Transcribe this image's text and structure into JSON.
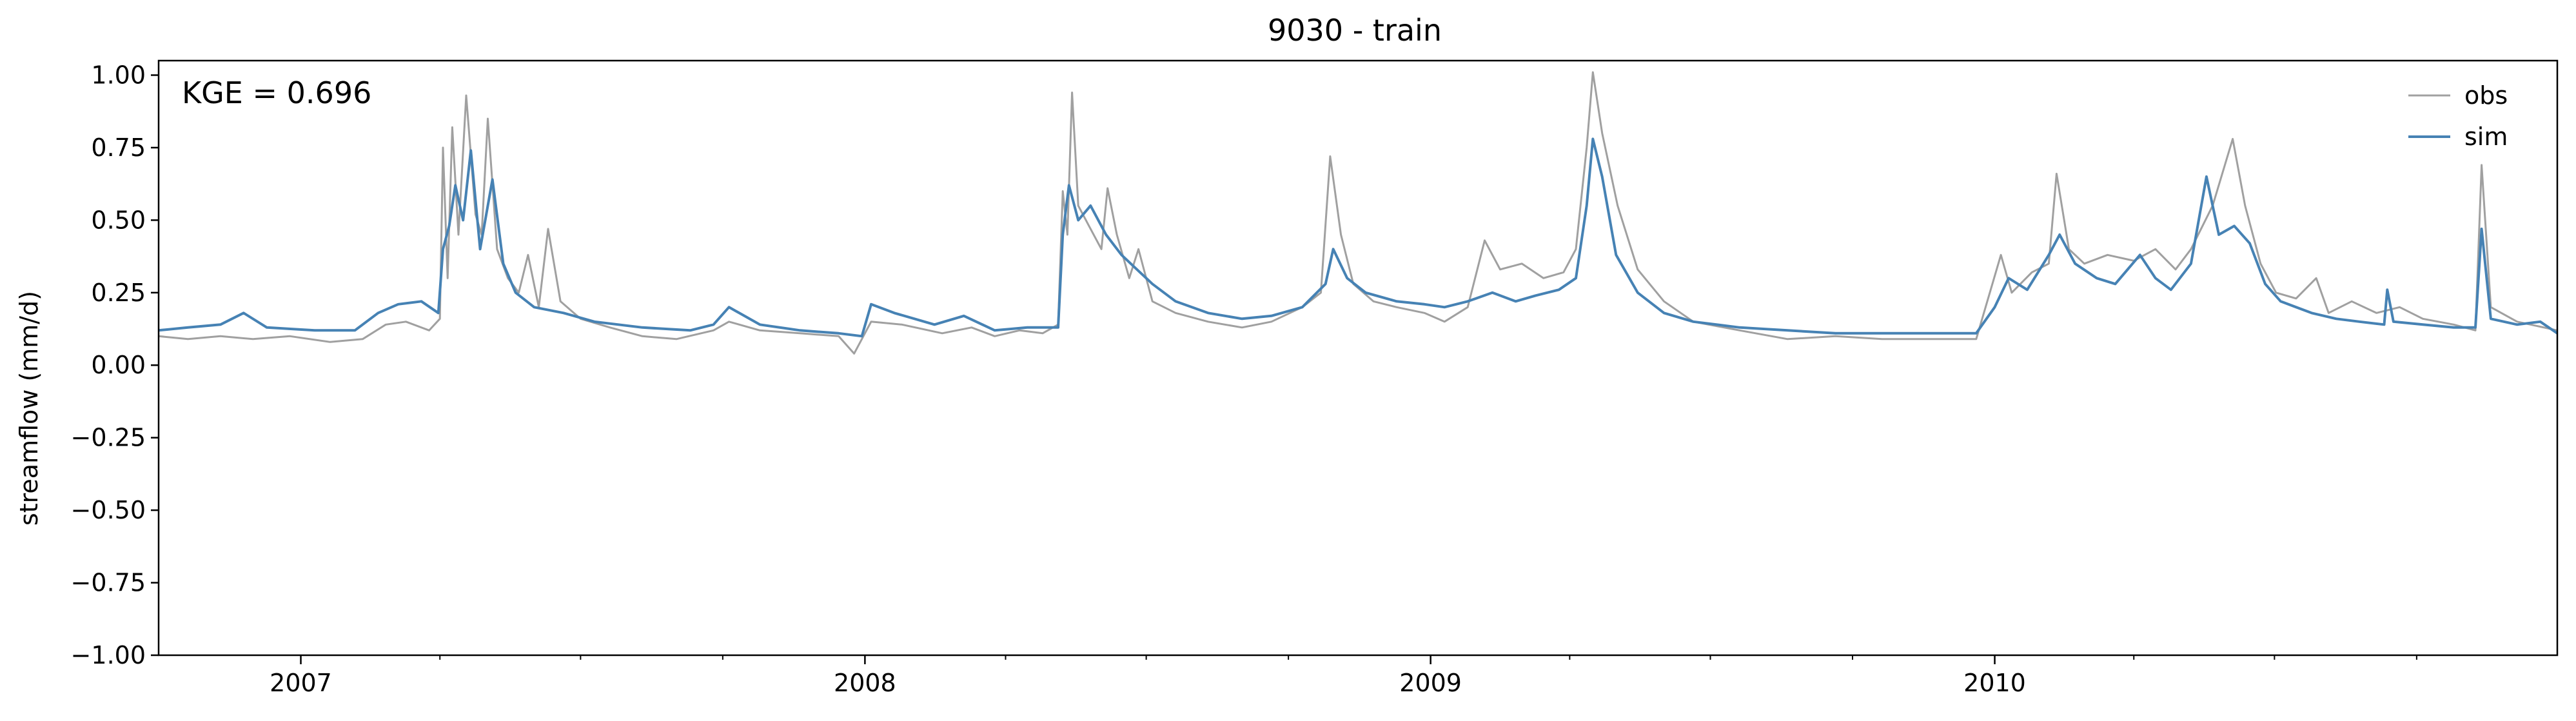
{
  "chart_data": {
    "type": "line",
    "title": "9030 - train",
    "xlabel": "",
    "ylabel": "streamflow (mm/d)",
    "annotation": "KGE = 0.696",
    "xlim": [
      "2006-10-01",
      "2010-12-31"
    ],
    "ylim": [
      -1.0,
      1.05
    ],
    "yticks": [
      1.0,
      0.75,
      0.5,
      0.25,
      0.0,
      -0.25,
      -0.5,
      -0.75,
      -1.0
    ],
    "ytick_labels": [
      "1.00",
      "0.75",
      "0.50",
      "0.25",
      "0.00",
      "−0.25",
      "−0.50",
      "−0.75",
      "−1.00"
    ],
    "xticks": [
      "2007-01-01",
      "2008-01-01",
      "2009-01-01",
      "2010-01-01"
    ],
    "xtick_labels": [
      "2007",
      "2008",
      "2009",
      "2010"
    ],
    "grid": false,
    "legend": "top-right",
    "series": [
      {
        "name": "obs",
        "color": "#a0a0a0",
        "points": [
          [
            "2006-10-01",
            0.1
          ],
          [
            "2006-10-20",
            0.09
          ],
          [
            "2006-11-10",
            0.1
          ],
          [
            "2006-12-01",
            0.09
          ],
          [
            "2006-12-25",
            0.1
          ],
          [
            "2007-01-20",
            0.08
          ],
          [
            "2007-02-10",
            0.09
          ],
          [
            "2007-02-25",
            0.14
          ],
          [
            "2007-03-10",
            0.15
          ],
          [
            "2007-03-25",
            0.12
          ],
          [
            "2007-04-01",
            0.16
          ],
          [
            "2007-04-03",
            0.75
          ],
          [
            "2007-04-06",
            0.3
          ],
          [
            "2007-04-09",
            0.82
          ],
          [
            "2007-04-13",
            0.45
          ],
          [
            "2007-04-18",
            0.93
          ],
          [
            "2007-04-24",
            0.52
          ],
          [
            "2007-04-28",
            0.45
          ],
          [
            "2007-05-02",
            0.85
          ],
          [
            "2007-05-08",
            0.4
          ],
          [
            "2007-05-15",
            0.3
          ],
          [
            "2007-05-22",
            0.25
          ],
          [
            "2007-05-28",
            0.38
          ],
          [
            "2007-06-04",
            0.2
          ],
          [
            "2007-06-10",
            0.47
          ],
          [
            "2007-06-18",
            0.22
          ],
          [
            "2007-07-01",
            0.16
          ],
          [
            "2007-07-20",
            0.13
          ],
          [
            "2007-08-10",
            0.1
          ],
          [
            "2007-09-01",
            0.09
          ],
          [
            "2007-09-25",
            0.12
          ],
          [
            "2007-10-05",
            0.15
          ],
          [
            "2007-10-25",
            0.12
          ],
          [
            "2007-11-20",
            0.11
          ],
          [
            "2007-12-15",
            0.1
          ],
          [
            "2007-12-25",
            0.04
          ],
          [
            "2008-01-05",
            0.15
          ],
          [
            "2008-01-25",
            0.14
          ],
          [
            "2008-02-20",
            0.11
          ],
          [
            "2008-03-10",
            0.13
          ],
          [
            "2008-03-25",
            0.1
          ],
          [
            "2008-04-10",
            0.12
          ],
          [
            "2008-04-25",
            0.11
          ],
          [
            "2008-05-05",
            0.14
          ],
          [
            "2008-05-08",
            0.6
          ],
          [
            "2008-05-11",
            0.45
          ],
          [
            "2008-05-14",
            0.94
          ],
          [
            "2008-05-18",
            0.55
          ],
          [
            "2008-05-25",
            0.48
          ],
          [
            "2008-06-02",
            0.4
          ],
          [
            "2008-06-06",
            0.61
          ],
          [
            "2008-06-12",
            0.45
          ],
          [
            "2008-06-20",
            0.3
          ],
          [
            "2008-06-26",
            0.4
          ],
          [
            "2008-07-05",
            0.22
          ],
          [
            "2008-07-20",
            0.18
          ],
          [
            "2008-08-10",
            0.15
          ],
          [
            "2008-09-01",
            0.13
          ],
          [
            "2008-09-20",
            0.15
          ],
          [
            "2008-10-10",
            0.2
          ],
          [
            "2008-10-22",
            0.25
          ],
          [
            "2008-10-28",
            0.72
          ],
          [
            "2008-11-04",
            0.45
          ],
          [
            "2008-11-12",
            0.28
          ],
          [
            "2008-11-25",
            0.22
          ],
          [
            "2008-12-10",
            0.2
          ],
          [
            "2008-12-28",
            0.18
          ],
          [
            "2009-01-10",
            0.15
          ],
          [
            "2009-01-25",
            0.2
          ],
          [
            "2009-02-05",
            0.43
          ],
          [
            "2009-02-15",
            0.33
          ],
          [
            "2009-03-01",
            0.35
          ],
          [
            "2009-03-15",
            0.3
          ],
          [
            "2009-03-28",
            0.32
          ],
          [
            "2009-04-05",
            0.4
          ],
          [
            "2009-04-12",
            0.75
          ],
          [
            "2009-04-16",
            1.01
          ],
          [
            "2009-04-22",
            0.8
          ],
          [
            "2009-05-02",
            0.55
          ],
          [
            "2009-05-15",
            0.33
          ],
          [
            "2009-06-01",
            0.22
          ],
          [
            "2009-06-20",
            0.15
          ],
          [
            "2009-07-20",
            0.12
          ],
          [
            "2009-08-20",
            0.09
          ],
          [
            "2009-09-20",
            0.1
          ],
          [
            "2009-10-20",
            0.09
          ],
          [
            "2009-11-20",
            0.09
          ],
          [
            "2009-12-20",
            0.09
          ],
          [
            "2010-01-05",
            0.38
          ],
          [
            "2010-01-12",
            0.25
          ],
          [
            "2010-01-25",
            0.32
          ],
          [
            "2010-02-05",
            0.35
          ],
          [
            "2010-02-10",
            0.66
          ],
          [
            "2010-02-18",
            0.4
          ],
          [
            "2010-02-28",
            0.35
          ],
          [
            "2010-03-15",
            0.38
          ],
          [
            "2010-04-01",
            0.36
          ],
          [
            "2010-04-15",
            0.4
          ],
          [
            "2010-04-28",
            0.33
          ],
          [
            "2010-05-08",
            0.4
          ],
          [
            "2010-05-22",
            0.55
          ],
          [
            "2010-06-04",
            0.78
          ],
          [
            "2010-06-12",
            0.55
          ],
          [
            "2010-06-22",
            0.35
          ],
          [
            "2010-07-02",
            0.25
          ],
          [
            "2010-07-15",
            0.23
          ],
          [
            "2010-07-28",
            0.3
          ],
          [
            "2010-08-05",
            0.18
          ],
          [
            "2010-08-20",
            0.22
          ],
          [
            "2010-09-05",
            0.18
          ],
          [
            "2010-09-20",
            0.2
          ],
          [
            "2010-10-05",
            0.16
          ],
          [
            "2010-10-25",
            0.14
          ],
          [
            "2010-11-08",
            0.12
          ],
          [
            "2010-11-12",
            0.69
          ],
          [
            "2010-11-18",
            0.2
          ],
          [
            "2010-12-05",
            0.15
          ],
          [
            "2010-12-31",
            0.12
          ]
        ]
      },
      {
        "name": "sim",
        "color": "#4682b4",
        "points": [
          [
            "2006-10-01",
            0.12
          ],
          [
            "2006-10-20",
            0.13
          ],
          [
            "2006-11-10",
            0.14
          ],
          [
            "2006-11-25",
            0.18
          ],
          [
            "2006-12-10",
            0.13
          ],
          [
            "2007-01-10",
            0.12
          ],
          [
            "2007-02-05",
            0.12
          ],
          [
            "2007-02-20",
            0.18
          ],
          [
            "2007-03-05",
            0.21
          ],
          [
            "2007-03-20",
            0.22
          ],
          [
            "2007-03-31",
            0.18
          ],
          [
            "2007-04-03",
            0.4
          ],
          [
            "2007-04-07",
            0.48
          ],
          [
            "2007-04-11",
            0.62
          ],
          [
            "2007-04-16",
            0.5
          ],
          [
            "2007-04-21",
            0.74
          ],
          [
            "2007-04-27",
            0.4
          ],
          [
            "2007-05-05",
            0.64
          ],
          [
            "2007-05-12",
            0.35
          ],
          [
            "2007-05-20",
            0.25
          ],
          [
            "2007-06-01",
            0.2
          ],
          [
            "2007-06-20",
            0.18
          ],
          [
            "2007-07-10",
            0.15
          ],
          [
            "2007-08-10",
            0.13
          ],
          [
            "2007-09-10",
            0.12
          ],
          [
            "2007-09-25",
            0.14
          ],
          [
            "2007-10-05",
            0.2
          ],
          [
            "2007-10-25",
            0.14
          ],
          [
            "2007-11-20",
            0.12
          ],
          [
            "2007-12-15",
            0.11
          ],
          [
            "2007-12-30",
            0.1
          ],
          [
            "2008-01-05",
            0.21
          ],
          [
            "2008-01-20",
            0.18
          ],
          [
            "2008-02-15",
            0.14
          ],
          [
            "2008-03-05",
            0.17
          ],
          [
            "2008-03-25",
            0.12
          ],
          [
            "2008-04-15",
            0.13
          ],
          [
            "2008-05-05",
            0.13
          ],
          [
            "2008-05-08",
            0.45
          ],
          [
            "2008-05-12",
            0.62
          ],
          [
            "2008-05-18",
            0.5
          ],
          [
            "2008-05-26",
            0.55
          ],
          [
            "2008-06-05",
            0.45
          ],
          [
            "2008-06-15",
            0.38
          ],
          [
            "2008-06-25",
            0.33
          ],
          [
            "2008-07-05",
            0.28
          ],
          [
            "2008-07-20",
            0.22
          ],
          [
            "2008-08-10",
            0.18
          ],
          [
            "2008-09-01",
            0.16
          ],
          [
            "2008-09-20",
            0.17
          ],
          [
            "2008-10-10",
            0.2
          ],
          [
            "2008-10-25",
            0.28
          ],
          [
            "2008-10-30",
            0.4
          ],
          [
            "2008-11-08",
            0.3
          ],
          [
            "2008-11-20",
            0.25
          ],
          [
            "2008-12-10",
            0.22
          ],
          [
            "2008-12-28",
            0.21
          ],
          [
            "2009-01-10",
            0.2
          ],
          [
            "2009-01-25",
            0.22
          ],
          [
            "2009-02-10",
            0.25
          ],
          [
            "2009-02-25",
            0.22
          ],
          [
            "2009-03-10",
            0.24
          ],
          [
            "2009-03-25",
            0.26
          ],
          [
            "2009-04-05",
            0.3
          ],
          [
            "2009-04-12",
            0.55
          ],
          [
            "2009-04-16",
            0.78
          ],
          [
            "2009-04-22",
            0.65
          ],
          [
            "2009-05-01",
            0.38
          ],
          [
            "2009-05-15",
            0.25
          ],
          [
            "2009-06-01",
            0.18
          ],
          [
            "2009-06-20",
            0.15
          ],
          [
            "2009-07-20",
            0.13
          ],
          [
            "2009-08-20",
            0.12
          ],
          [
            "2009-09-20",
            0.11
          ],
          [
            "2009-10-20",
            0.11
          ],
          [
            "2009-11-20",
            0.11
          ],
          [
            "2009-12-20",
            0.11
          ],
          [
            "2010-01-01",
            0.2
          ],
          [
            "2010-01-10",
            0.3
          ],
          [
            "2010-01-22",
            0.26
          ],
          [
            "2010-02-05",
            0.38
          ],
          [
            "2010-02-12",
            0.45
          ],
          [
            "2010-02-22",
            0.35
          ],
          [
            "2010-03-08",
            0.3
          ],
          [
            "2010-03-20",
            0.28
          ],
          [
            "2010-04-05",
            0.38
          ],
          [
            "2010-04-15",
            0.3
          ],
          [
            "2010-04-25",
            0.26
          ],
          [
            "2010-05-08",
            0.35
          ],
          [
            "2010-05-18",
            0.65
          ],
          [
            "2010-05-26",
            0.45
          ],
          [
            "2010-06-05",
            0.48
          ],
          [
            "2010-06-15",
            0.42
          ],
          [
            "2010-06-25",
            0.28
          ],
          [
            "2010-07-05",
            0.22
          ],
          [
            "2010-07-25",
            0.18
          ],
          [
            "2010-08-10",
            0.16
          ],
          [
            "2010-08-25",
            0.15
          ],
          [
            "2010-09-10",
            0.14
          ],
          [
            "2010-09-12",
            0.26
          ],
          [
            "2010-09-16",
            0.15
          ],
          [
            "2010-10-05",
            0.14
          ],
          [
            "2010-10-25",
            0.13
          ],
          [
            "2010-11-08",
            0.13
          ],
          [
            "2010-11-12",
            0.47
          ],
          [
            "2010-11-18",
            0.16
          ],
          [
            "2010-12-05",
            0.14
          ],
          [
            "2010-12-20",
            0.15
          ],
          [
            "2010-12-31",
            0.11
          ]
        ]
      }
    ]
  }
}
